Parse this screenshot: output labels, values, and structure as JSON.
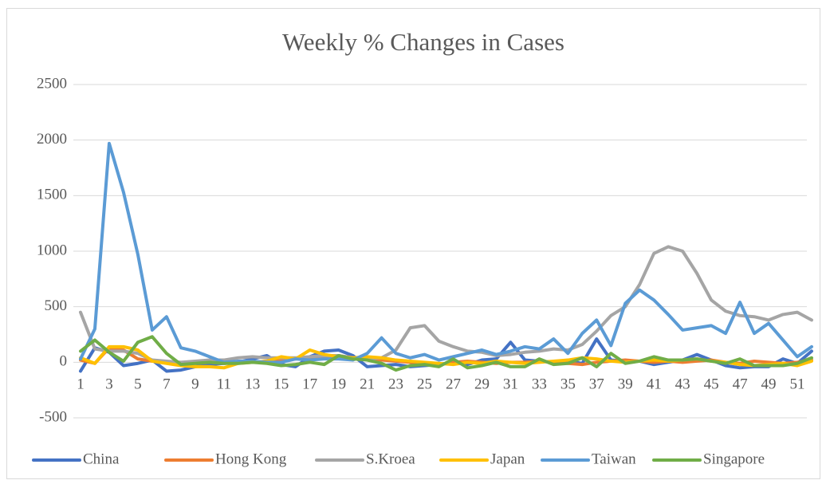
{
  "chart_data": {
    "type": "line",
    "title": "Weekly % Changes in Cases",
    "categories": [
      1,
      null,
      3,
      null,
      5,
      null,
      7,
      null,
      9,
      null,
      11,
      null,
      13,
      null,
      15,
      null,
      17,
      null,
      19,
      null,
      21,
      null,
      23,
      null,
      25,
      null,
      27,
      null,
      29,
      null,
      31,
      null,
      33,
      null,
      35,
      null,
      37,
      null,
      39,
      null,
      41,
      null,
      43,
      null,
      45,
      null,
      47,
      null,
      49,
      null,
      51,
      null
    ],
    "ylim": [
      -500,
      2500
    ],
    "yticks": [
      -500,
      0,
      500,
      1000,
      1500,
      2000,
      2500
    ],
    "grid": true,
    "legend": "bottom",
    "series": [
      {
        "name": "China",
        "color": "#4472c4",
        "values": [
          -80,
          130,
          90,
          -30,
          -10,
          20,
          -80,
          -70,
          -40,
          -20,
          -10,
          0,
          30,
          60,
          -20,
          -40,
          50,
          100,
          110,
          60,
          -40,
          -30,
          -20,
          -40,
          -30,
          -20,
          0,
          -20,
          20,
          30,
          180,
          20,
          10,
          0,
          10,
          -10,
          210,
          20,
          10,
          10,
          -20,
          0,
          20,
          70,
          20,
          -30,
          -50,
          -40,
          -40,
          30,
          -10,
          100
        ]
      },
      {
        "name": "Hong Kong",
        "color": "#ed7d31",
        "values": [
          20,
          -10,
          130,
          110,
          30,
          10,
          0,
          -20,
          -10,
          0,
          -10,
          0,
          0,
          10,
          20,
          30,
          40,
          50,
          60,
          40,
          30,
          20,
          10,
          0,
          -10,
          -20,
          0,
          10,
          0,
          -10,
          0,
          0,
          10,
          0,
          -10,
          -20,
          0,
          10,
          20,
          10,
          0,
          10,
          0,
          10,
          20,
          0,
          -10,
          10,
          0,
          -10,
          0,
          20
        ]
      },
      {
        "name": "S.Kroea",
        "color": "#a5a5a5",
        "values": [
          450,
          120,
          100,
          100,
          80,
          20,
          10,
          0,
          10,
          20,
          20,
          40,
          50,
          40,
          40,
          40,
          50,
          60,
          60,
          40,
          30,
          40,
          110,
          310,
          330,
          190,
          140,
          100,
          90,
          60,
          70,
          90,
          100,
          120,
          110,
          160,
          280,
          420,
          500,
          700,
          980,
          1040,
          1000,
          800,
          560,
          460,
          420,
          410,
          380,
          430,
          450,
          380
        ]
      },
      {
        "name": "Japan",
        "color": "#ffc000",
        "values": [
          40,
          -10,
          140,
          140,
          110,
          10,
          -10,
          -30,
          -40,
          -40,
          -50,
          -10,
          0,
          10,
          50,
          30,
          110,
          70,
          50,
          40,
          50,
          40,
          20,
          10,
          0,
          -10,
          -20,
          0,
          -10,
          10,
          0,
          -10,
          0,
          10,
          20,
          40,
          30,
          10,
          0,
          10,
          20,
          10,
          20,
          30,
          10,
          0,
          -20,
          -30,
          -20,
          -10,
          -30,
          10
        ]
      },
      {
        "name": "Taiwan",
        "color": "#5b9bd5",
        "values": [
          30,
          300,
          1970,
          1530,
          970,
          290,
          410,
          130,
          100,
          50,
          0,
          10,
          10,
          0,
          0,
          30,
          20,
          30,
          30,
          20,
          80,
          220,
          80,
          40,
          70,
          20,
          50,
          80,
          110,
          70,
          100,
          140,
          120,
          210,
          80,
          260,
          380,
          150,
          530,
          650,
          560,
          430,
          290,
          310,
          330,
          260,
          540,
          260,
          350,
          200,
          50,
          140
        ]
      },
      {
        "name": "Singapore",
        "color": "#70ad47",
        "values": [
          100,
          200,
          90,
          10,
          180,
          230,
          80,
          -20,
          -10,
          0,
          -10,
          -10,
          0,
          -10,
          -30,
          -20,
          0,
          -20,
          60,
          30,
          20,
          -10,
          -70,
          -30,
          -20,
          -40,
          30,
          -50,
          -30,
          0,
          -40,
          -40,
          30,
          -20,
          -10,
          40,
          -40,
          80,
          -10,
          10,
          50,
          20,
          20,
          30,
          10,
          -10,
          30,
          -30,
          -30,
          -30,
          -10,
          40
        ]
      }
    ]
  }
}
